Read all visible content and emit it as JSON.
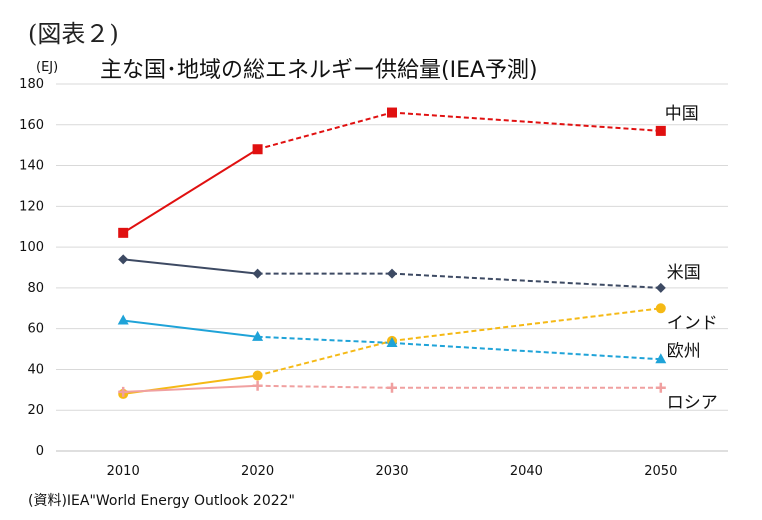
{
  "figure_label": "(図表２)",
  "unit_label": "(EJ)",
  "source_text": "(資料)IEA\"World Energy Outlook 2022\"",
  "chart_data": {
    "type": "line",
    "title": "主な国･地域の総エネルギー供給量(IEA予測)",
    "xlabel": "",
    "ylabel": "(EJ)",
    "x": [
      2010,
      2020,
      2030,
      2040,
      2050
    ],
    "xlim": [
      2005,
      2055
    ],
    "ylim": [
      0,
      180
    ],
    "yticks": [
      0,
      20,
      40,
      60,
      80,
      100,
      120,
      140,
      160,
      180
    ],
    "grid": true,
    "line_style_note": "solid for 2010-2020 (actual), dashed 2020-2050 (projection)",
    "series": [
      {
        "name": "中国",
        "color": "#e01010",
        "marker": "square",
        "points": [
          [
            2010,
            107
          ],
          [
            2020,
            148
          ],
          [
            2030,
            166
          ],
          [
            2050,
            157
          ]
        ]
      },
      {
        "name": "米国",
        "color": "#3d4a63",
        "marker": "diamond",
        "points": [
          [
            2010,
            94
          ],
          [
            2020,
            87
          ],
          [
            2030,
            87
          ],
          [
            2050,
            80
          ]
        ]
      },
      {
        "name": "インド",
        "color": "#f5b915",
        "marker": "circle",
        "points": [
          [
            2010,
            28
          ],
          [
            2020,
            37
          ],
          [
            2030,
            54
          ],
          [
            2050,
            70
          ]
        ]
      },
      {
        "name": "欧州",
        "color": "#1fa3d8",
        "marker": "triangle",
        "points": [
          [
            2010,
            64
          ],
          [
            2020,
            56
          ],
          [
            2030,
            53
          ],
          [
            2050,
            45
          ]
        ]
      },
      {
        "name": "ロシア",
        "color": "#f0a0a0",
        "marker": "plus",
        "points": [
          [
            2010,
            29
          ],
          [
            2020,
            32
          ],
          [
            2030,
            31
          ],
          [
            2050,
            31
          ]
        ]
      }
    ]
  }
}
